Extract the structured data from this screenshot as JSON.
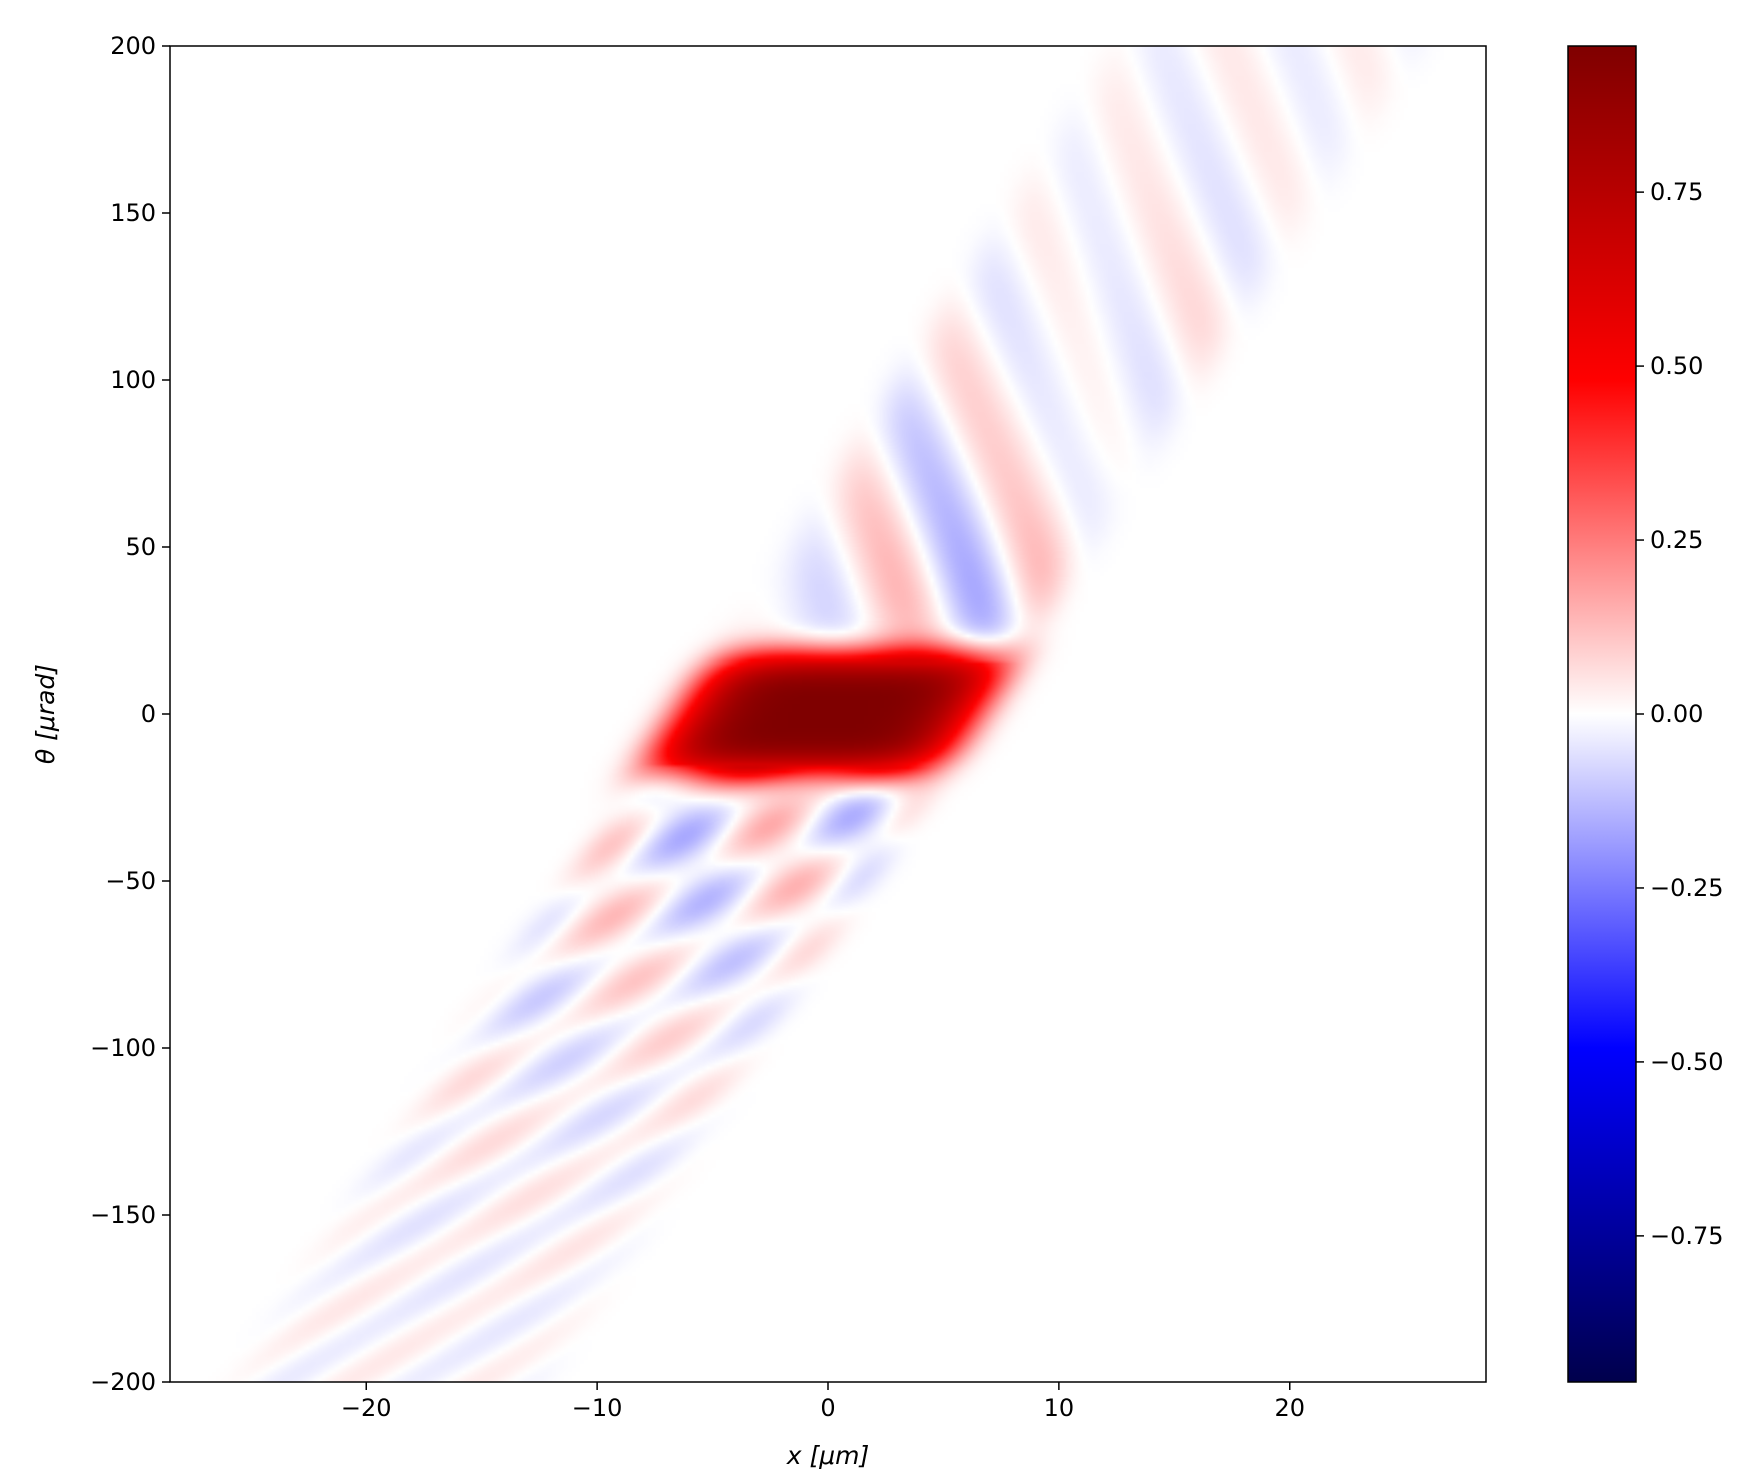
{
  "chart_data": {
    "type": "heatmap",
    "title": "",
    "xlabel": "x  [μm]",
    "ylabel": "θ  [μrad]",
    "xlim": [
      -28.5,
      28.5
    ],
    "ylim": [
      -200,
      200
    ],
    "x_ticks": [
      {
        "value": -20,
        "label": "−20"
      },
      {
        "value": -10,
        "label": "−10"
      },
      {
        "value": 0,
        "label": "0"
      },
      {
        "value": 10,
        "label": "10"
      },
      {
        "value": 20,
        "label": "20"
      }
    ],
    "y_ticks": [
      {
        "value": -200,
        "label": "−200"
      },
      {
        "value": -150,
        "label": "−150"
      },
      {
        "value": -100,
        "label": "−100"
      },
      {
        "value": -50,
        "label": "−50"
      },
      {
        "value": 0,
        "label": "0"
      },
      {
        "value": 50,
        "label": "50"
      },
      {
        "value": 100,
        "label": "100"
      },
      {
        "value": 150,
        "label": "150"
      },
      {
        "value": 200,
        "label": "200"
      }
    ],
    "colorbar": {
      "colormap": "seismic",
      "vmin": -0.96,
      "vmax": 0.96,
      "ticks": [
        {
          "value": 0.75,
          "label": "0.75"
        },
        {
          "value": 0.5,
          "label": "0.50"
        },
        {
          "value": 0.25,
          "label": "0.25"
        },
        {
          "value": 0,
          "label": "0.00"
        },
        {
          "value": -0.25,
          "label": "−0.25"
        },
        {
          "value": -0.5,
          "label": "−0.50"
        },
        {
          "value": -0.75,
          "label": "−0.75"
        }
      ],
      "colors": [
        "#00004c",
        "#0000ff",
        "#ffffff",
        "#ff0000",
        "#7f0000"
      ]
    },
    "field": {
      "description_values": "Wigner-like distribution: sheared band with slope ~10.5 μrad/μm, positive core peak ~0.96 at (0,0), negative side lobes",
      "shear_slope": 10.5,
      "peak_value": 0.96,
      "peak_position": [
        0,
        0
      ]
    },
    "grid": false,
    "legend": "none"
  }
}
